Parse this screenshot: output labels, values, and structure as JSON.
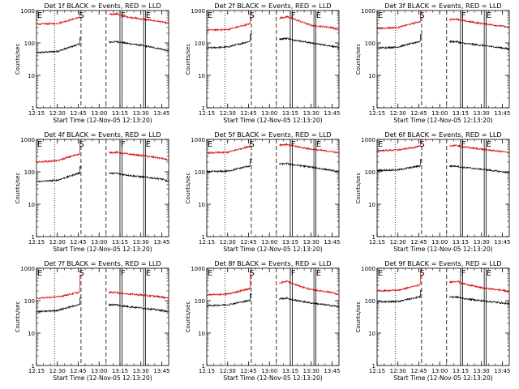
{
  "figure": {
    "panel_titles": [
      "Det 1f BLACK = Events, RED = LLD",
      "Det 2f BLACK = Events, RED = LLD",
      "Det 3f BLACK = Events, RED = LLD",
      "Det 4f BLACK = Events, RED = LLD",
      "Det 5f BLACK = Events, RED = LLD",
      "Det 6f BLACK = Events, RED = LLD",
      "Det 7f BLACK = Events, RED = LLD",
      "Det 8f BLACK = Events, RED = LLD",
      "Det 9f BLACK = Events, RED = LLD"
    ],
    "xlabel": "Start Time (12-Nov-05 12:13:20)",
    "ylabel": "Counts/sec",
    "xtick_labels": [
      "12:15",
      "12:30",
      "12:45",
      "13:00",
      "13:15",
      "13:30",
      "13:45"
    ],
    "ytick_labels": [
      "1",
      "10",
      "100",
      "1000"
    ],
    "markers": [
      "E",
      "S",
      "F",
      "E"
    ],
    "colors": {
      "events": "#000000",
      "lld": "#d40000",
      "axes": "#000000"
    }
  },
  "chart_data": [
    {
      "type": "line",
      "title": "Det 1f BLACK = Events, RED = LLD",
      "xlabel": "Start Time (12-Nov-05 12:13:20)",
      "ylabel": "Counts/sec",
      "yscale": "log",
      "ylim": [
        1,
        1000
      ],
      "xlim": [
        "12:15",
        "13:50"
      ],
      "x": [
        "12:15",
        "12:30",
        "12:45",
        "13:13",
        "13:15",
        "13:30",
        "13:45",
        "13:50"
      ],
      "series": [
        {
          "name": "BLACK = Events",
          "values": [
            50,
            55,
            90,
            110,
            105,
            85,
            65,
            55
          ]
        },
        {
          "name": "RED = LLD",
          "values": [
            380,
            400,
            600,
            800,
            700,
            550,
            450,
            400
          ]
        }
      ],
      "vlines": [
        {
          "x": "12:28",
          "style": "dotted"
        },
        {
          "x": "12:47",
          "style": "dashed"
        },
        {
          "x": "13:05",
          "style": "dashed"
        },
        {
          "x": "13:15",
          "style": "solid"
        },
        {
          "x": "13:32",
          "style": "solid"
        }
      ]
    },
    {
      "type": "line",
      "title": "Det 2f BLACK = Events, RED = LLD",
      "xlabel": "Start Time (12-Nov-05 12:13:20)",
      "ylabel": "Counts/sec",
      "yscale": "log",
      "ylim": [
        1,
        1000
      ],
      "xlim": [
        "12:15",
        "13:50"
      ],
      "x": [
        "12:15",
        "12:30",
        "12:45",
        "13:13",
        "13:15",
        "13:30",
        "13:45",
        "13:50"
      ],
      "series": [
        {
          "name": "BLACK = Events",
          "values": [
            70,
            75,
            110,
            140,
            130,
            100,
            80,
            70
          ]
        },
        {
          "name": "RED = LLD",
          "values": [
            250,
            260,
            380,
            650,
            600,
            350,
            300,
            250
          ]
        }
      ],
      "vlines": [
        {
          "x": "12:28",
          "style": "dotted"
        },
        {
          "x": "12:47",
          "style": "dashed"
        },
        {
          "x": "13:05",
          "style": "dashed"
        },
        {
          "x": "13:15",
          "style": "solid"
        },
        {
          "x": "13:32",
          "style": "solid"
        }
      ]
    },
    {
      "type": "line",
      "title": "Det 3f BLACK = Events, RED = LLD",
      "xlabel": "Start Time (12-Nov-05 12:13:20)",
      "ylabel": "Counts/sec",
      "yscale": "log",
      "ylim": [
        1,
        1000
      ],
      "xlim": [
        "12:15",
        "13:50"
      ],
      "x": [
        "12:15",
        "12:30",
        "12:45",
        "13:13",
        "13:15",
        "13:30",
        "13:45",
        "13:50"
      ],
      "series": [
        {
          "name": "BLACK = Events",
          "values": [
            70,
            75,
            110,
            110,
            100,
            85,
            70,
            65
          ]
        },
        {
          "name": "RED = LLD",
          "values": [
            280,
            300,
            450,
            550,
            500,
            400,
            330,
            300
          ]
        }
      ],
      "vlines": [
        {
          "x": "12:28",
          "style": "dotted"
        },
        {
          "x": "12:47",
          "style": "dashed"
        },
        {
          "x": "13:05",
          "style": "dashed"
        },
        {
          "x": "13:15",
          "style": "solid"
        },
        {
          "x": "13:32",
          "style": "solid"
        }
      ]
    },
    {
      "type": "line",
      "title": "Det 4f BLACK = Events, RED = LLD",
      "xlabel": "Start Time (12-Nov-05 12:13:20)",
      "ylabel": "Counts/sec",
      "yscale": "log",
      "ylim": [
        1,
        1000
      ],
      "xlim": [
        "12:15",
        "13:50"
      ],
      "x": [
        "12:15",
        "12:30",
        "12:45",
        "13:13",
        "13:15",
        "13:30",
        "13:45",
        "13:50"
      ],
      "series": [
        {
          "name": "BLACK = Events",
          "values": [
            50,
            55,
            90,
            90,
            85,
            70,
            60,
            50
          ]
        },
        {
          "name": "RED = LLD",
          "values": [
            200,
            220,
            350,
            400,
            380,
            320,
            260,
            230
          ]
        }
      ],
      "vlines": [
        {
          "x": "12:28",
          "style": "dotted"
        },
        {
          "x": "12:47",
          "style": "dashed"
        },
        {
          "x": "13:05",
          "style": "dashed"
        },
        {
          "x": "13:15",
          "style": "solid"
        },
        {
          "x": "13:32",
          "style": "solid"
        }
      ]
    },
    {
      "type": "line",
      "title": "Det 5f BLACK = Events, RED = LLD",
      "xlabel": "Start Time (12-Nov-05 12:13:20)",
      "ylabel": "Counts/sec",
      "yscale": "log",
      "ylim": [
        1,
        1000
      ],
      "xlim": [
        "12:15",
        "13:50"
      ],
      "x": [
        "12:15",
        "12:30",
        "12:45",
        "13:13",
        "13:15",
        "13:30",
        "13:45",
        "13:50"
      ],
      "series": [
        {
          "name": "BLACK = Events",
          "values": [
            100,
            105,
            150,
            180,
            170,
            140,
            110,
            100
          ]
        },
        {
          "name": "RED = LLD",
          "values": [
            380,
            400,
            600,
            700,
            650,
            500,
            420,
            380
          ]
        }
      ],
      "vlines": [
        {
          "x": "12:28",
          "style": "dotted"
        },
        {
          "x": "12:47",
          "style": "dashed"
        },
        {
          "x": "13:05",
          "style": "dashed"
        },
        {
          "x": "13:15",
          "style": "solid"
        },
        {
          "x": "13:32",
          "style": "solid"
        }
      ]
    },
    {
      "type": "line",
      "title": "Det 6f BLACK = Events, RED = LLD",
      "xlabel": "Start Time (12-Nov-05 12:13:20)",
      "ylabel": "Counts/sec",
      "yscale": "log",
      "ylim": [
        1,
        1000
      ],
      "xlim": [
        "12:15",
        "13:50"
      ],
      "x": [
        "12:15",
        "12:30",
        "12:45",
        "13:13",
        "13:15",
        "13:30",
        "13:45",
        "13:50"
      ],
      "series": [
        {
          "name": "BLACK = Events",
          "values": [
            110,
            115,
            150,
            150,
            140,
            120,
            100,
            95
          ]
        },
        {
          "name": "RED = LLD",
          "values": [
            450,
            470,
            600,
            650,
            600,
            500,
            420,
            380
          ]
        }
      ],
      "vlines": [
        {
          "x": "12:28",
          "style": "dotted"
        },
        {
          "x": "12:47",
          "style": "dashed"
        },
        {
          "x": "13:05",
          "style": "dashed"
        },
        {
          "x": "13:15",
          "style": "solid"
        },
        {
          "x": "13:32",
          "style": "solid"
        }
      ]
    },
    {
      "type": "line",
      "title": "Det 7f BLACK = Events, RED = LLD",
      "xlabel": "Start Time (12-Nov-05 12:13:20)",
      "ylabel": "Counts/sec",
      "yscale": "log",
      "ylim": [
        1,
        1000
      ],
      "xlim": [
        "12:15",
        "13:50"
      ],
      "x": [
        "12:15",
        "12:30",
        "12:45",
        "13:13",
        "13:15",
        "13:30",
        "13:45",
        "13:50"
      ],
      "series": [
        {
          "name": "BLACK = Events",
          "values": [
            45,
            50,
            75,
            75,
            70,
            60,
            50,
            45
          ]
        },
        {
          "name": "RED = LLD",
          "values": [
            120,
            130,
            180,
            180,
            170,
            150,
            130,
            120
          ]
        }
      ],
      "vlines": [
        {
          "x": "12:28",
          "style": "dotted"
        },
        {
          "x": "12:47",
          "style": "dashed"
        },
        {
          "x": "13:05",
          "style": "dashed"
        },
        {
          "x": "13:15",
          "style": "solid"
        },
        {
          "x": "13:32",
          "style": "solid"
        }
      ]
    },
    {
      "type": "line",
      "title": "Det 8f BLACK = Events, RED = LLD",
      "xlabel": "Start Time (12-Nov-05 12:13:20)",
      "ylabel": "Counts/sec",
      "yscale": "log",
      "ylim": [
        1,
        1000
      ],
      "xlim": [
        "12:15",
        "13:50"
      ],
      "x": [
        "12:15",
        "12:30",
        "12:45",
        "13:13",
        "13:15",
        "13:30",
        "13:45",
        "13:50"
      ],
      "series": [
        {
          "name": "BLACK = Events",
          "values": [
            70,
            75,
            100,
            120,
            110,
            85,
            70,
            65
          ]
        },
        {
          "name": "RED = LLD",
          "values": [
            150,
            160,
            230,
            400,
            350,
            220,
            180,
            150
          ]
        }
      ],
      "vlines": [
        {
          "x": "12:28",
          "style": "dotted"
        },
        {
          "x": "12:47",
          "style": "dashed"
        },
        {
          "x": "13:05",
          "style": "dashed"
        },
        {
          "x": "13:15",
          "style": "solid"
        },
        {
          "x": "13:32",
          "style": "solid"
        }
      ]
    },
    {
      "type": "line",
      "title": "Det 9f BLACK = Events, RED = LLD",
      "xlabel": "Start Time (12-Nov-05 12:13:20)",
      "ylabel": "Counts/sec",
      "yscale": "log",
      "ylim": [
        1,
        1000
      ],
      "xlim": [
        "12:15",
        "13:50"
      ],
      "x": [
        "12:15",
        "12:30",
        "12:45",
        "13:13",
        "13:15",
        "13:30",
        "13:45",
        "13:50"
      ],
      "series": [
        {
          "name": "BLACK = Events",
          "values": [
            90,
            95,
            130,
            130,
            120,
            100,
            85,
            80
          ]
        },
        {
          "name": "RED = LLD",
          "values": [
            200,
            210,
            300,
            400,
            350,
            250,
            210,
            190
          ]
        }
      ],
      "vlines": [
        {
          "x": "12:28",
          "style": "dotted"
        },
        {
          "x": "12:47",
          "style": "dashed"
        },
        {
          "x": "13:05",
          "style": "dashed"
        },
        {
          "x": "13:15",
          "style": "solid"
        },
        {
          "x": "13:32",
          "style": "solid"
        }
      ]
    }
  ]
}
